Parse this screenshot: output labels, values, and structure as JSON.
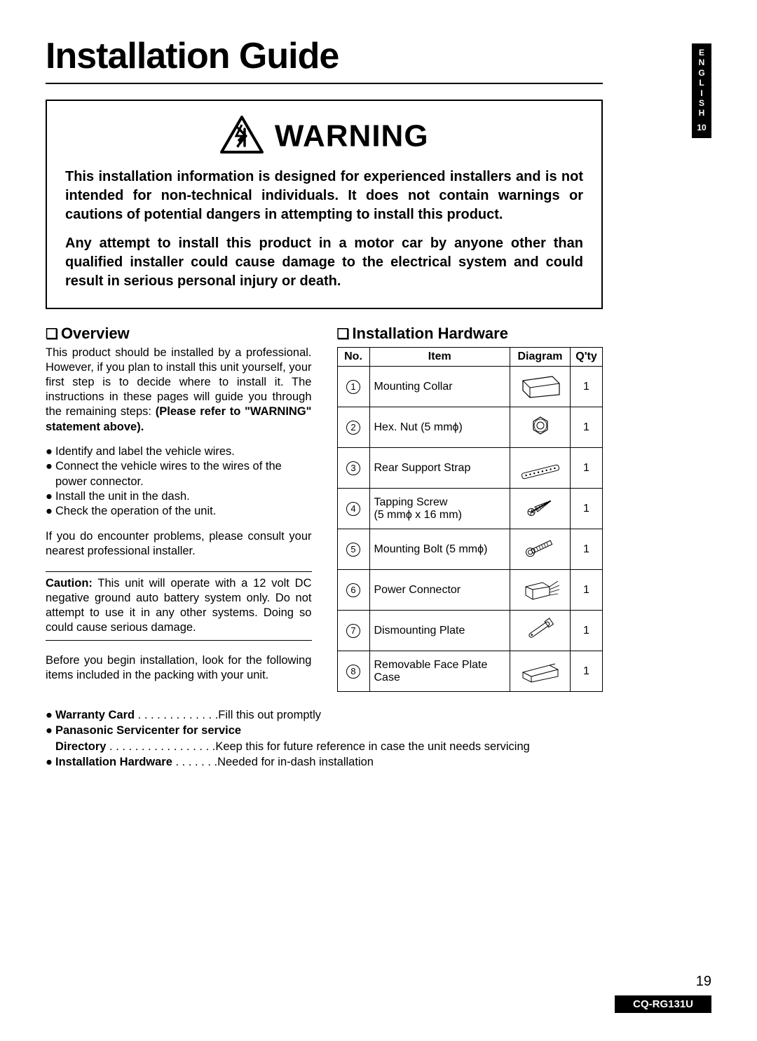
{
  "page": {
    "title": "Installation Guide",
    "sideTab": {
      "language": "ENGLISH",
      "pageMini": "10"
    },
    "pageNumber": "19",
    "modelCode": "CQ-RG131U"
  },
  "warning": {
    "headWord": "WARNING",
    "para1": "This installation information is designed for experienced installers and is not intended for non-technical individuals. It does not contain warnings or cautions of potential dangers in attempting to install this product.",
    "para2": "Any attempt to install this product in a motor car by anyone other than qualified installer could cause damage to the electrical system and could result in serious personal injury or death."
  },
  "overview": {
    "heading": "Overview",
    "intro1": "This product should be installed by a professional. However, if you plan to install this unit yourself, your first step is to decide where to install it. The instructions in these pages will guide you through the remaining steps: ",
    "introBold": "(Please refer to \"WARNING\" statement above).",
    "bullets": [
      "Identify and label the vehicle wires.",
      "Connect the vehicle wires to the wires of the power connector.",
      "Install the unit in the dash.",
      "Check the operation of the unit."
    ],
    "afterBullets": "If you do encounter problems, please consult your nearest professional installer.",
    "cautionLabel": "Caution:",
    "cautionText": " This unit will operate with a 12 volt DC negative ground auto battery system only. Do not attempt to use it in any other systems. Doing so could cause serious damage.",
    "beforeBegin": "Before you begin installation, look for the following items included in the packing with your unit."
  },
  "hardware": {
    "heading": "Installation Hardware",
    "cols": {
      "no": "No.",
      "item": "Item",
      "diagram": "Diagram",
      "qty": "Q'ty"
    },
    "rows": [
      {
        "n": "1",
        "item": "Mounting Collar",
        "qty": "1"
      },
      {
        "n": "2",
        "item": "Hex. Nut (5 mmϕ)",
        "qty": "1"
      },
      {
        "n": "3",
        "item": "Rear Support Strap",
        "qty": "1"
      },
      {
        "n": "4",
        "item": "Tapping Screw\n(5 mmϕ x 16 mm)",
        "qty": "1"
      },
      {
        "n": "5",
        "item": "Mounting Bolt (5 mmϕ)",
        "qty": "1"
      },
      {
        "n": "6",
        "item": "Power Connector",
        "qty": "1"
      },
      {
        "n": "7",
        "item": "Dismounting Plate",
        "qty": "1"
      },
      {
        "n": "8",
        "item": "Removable Face Plate Case",
        "qty": "1"
      }
    ]
  },
  "bottomList": [
    {
      "label": "Warranty Card",
      "dots": " . . . . . . . . . . . . .",
      "desc": "Fill this out promptly"
    },
    {
      "label": "Panasonic Servicenter for service",
      "dots": "",
      "desc": ""
    },
    {
      "label": "Directory",
      "dots": "  . . . . . . . . . . . . . . . . .",
      "desc": "Keep this for future reference in case the unit needs servicing",
      "indent": true
    },
    {
      "label": "Installation Hardware",
      "dots": " . . . . . . .",
      "desc": "Needed for in-dash installation"
    }
  ]
}
